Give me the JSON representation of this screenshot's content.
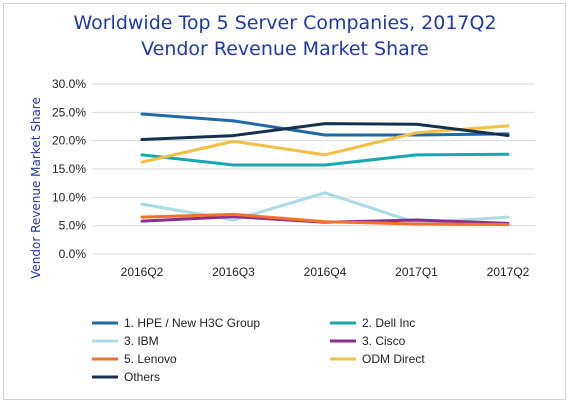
{
  "chart_data": {
    "type": "line",
    "title": "Worldwide Top 5 Server Companies, 2017Q2",
    "subtitle": "Vendor Revenue Market Share",
    "ylabel": "Vendor Revenue Market Share",
    "xlabel": "",
    "categories": [
      "2016Q2",
      "2016Q3",
      "2016Q4",
      "2017Q1",
      "2017Q2"
    ],
    "ylim": [
      0,
      30
    ],
    "yticks": [
      "0.0%",
      "5.0%",
      "10.0%",
      "15.0%",
      "20.0%",
      "25.0%",
      "30.0%"
    ],
    "grid": true,
    "legend_position": "bottom",
    "series": [
      {
        "name": "1. HPE / New H3C Group",
        "color": "#1e6aa8",
        "values": [
          24.7,
          23.5,
          21.0,
          21.0,
          21.2
        ]
      },
      {
        "name": "2. Dell Inc",
        "color": "#1aa6b3",
        "values": [
          17.5,
          15.7,
          15.7,
          17.5,
          17.6
        ]
      },
      {
        "name": "3. IBM",
        "color": "#a8dce6",
        "values": [
          8.8,
          6.0,
          10.8,
          5.5,
          6.5
        ]
      },
      {
        "name": "3. Cisco",
        "color": "#8b2e8f",
        "values": [
          5.8,
          6.6,
          5.6,
          6.0,
          5.4
        ]
      },
      {
        "name": "5. Lenovo",
        "color": "#f2712e",
        "values": [
          6.5,
          7.0,
          5.7,
          5.3,
          5.2
        ]
      },
      {
        "name": "ODM Direct",
        "color": "#f4bf44",
        "values": [
          16.2,
          19.9,
          17.5,
          21.4,
          22.6
        ]
      },
      {
        "name": "Others",
        "color": "#16304f",
        "values": [
          20.2,
          20.9,
          23.0,
          22.9,
          20.9
        ]
      }
    ]
  }
}
